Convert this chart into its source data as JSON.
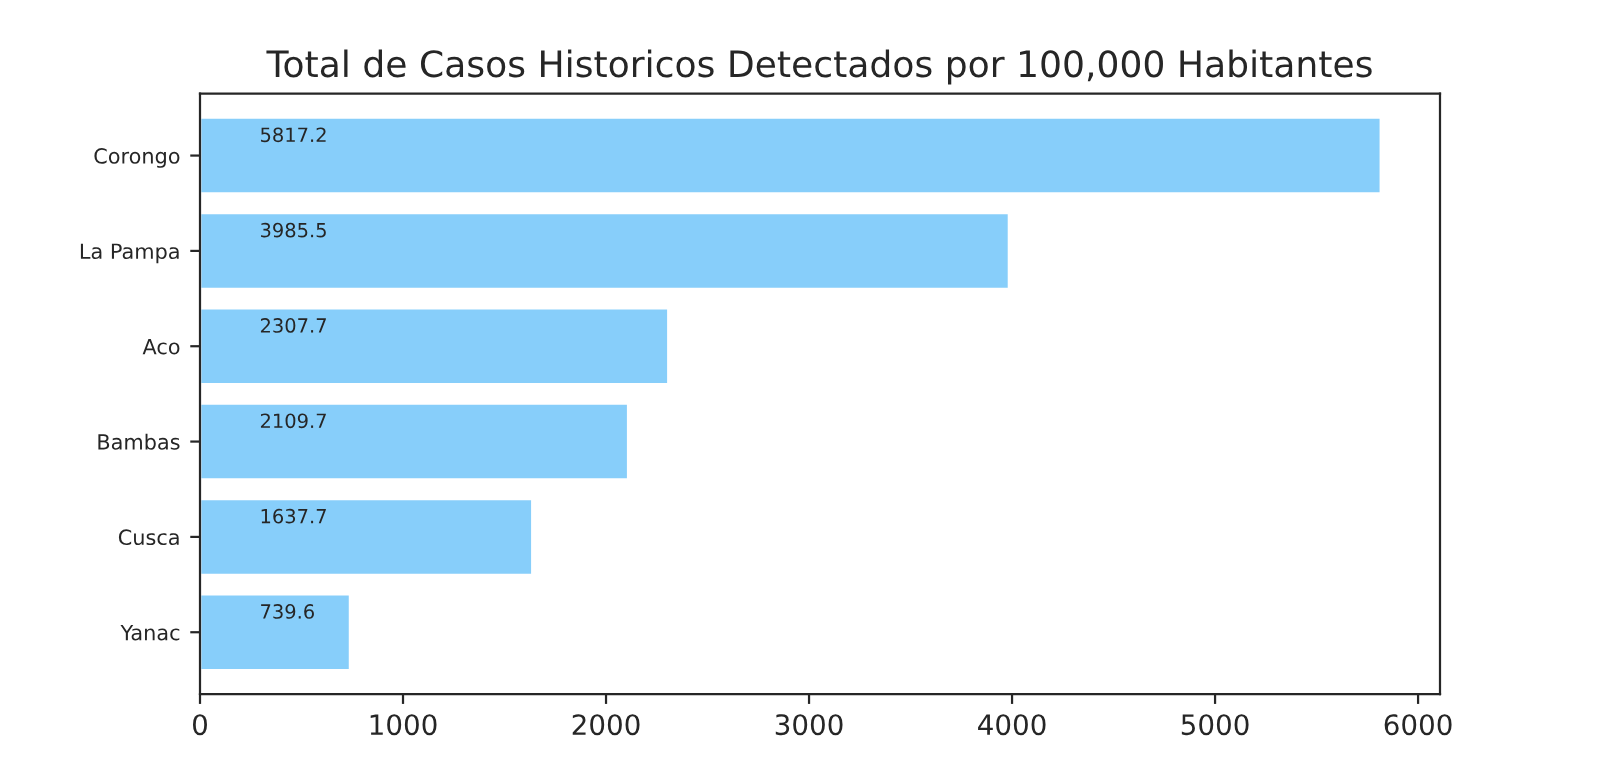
{
  "chart_data": {
    "type": "bar",
    "orientation": "horizontal",
    "title": "Total de Casos Historicos Detectados por 100,000 Habitantes",
    "categories": [
      "Corongo",
      "La Pampa",
      "Aco",
      "Bambas",
      "Cusca",
      "Yanac"
    ],
    "values": [
      5817.2,
      3985.5,
      2307.7,
      2109.7,
      1637.7,
      739.6
    ],
    "color": "#87cefa",
    "data_labels": true,
    "xlim": [
      0,
      6108
    ],
    "xticks": [
      0,
      1000,
      2000,
      3000,
      4000,
      5000,
      6000
    ],
    "grid": false
  }
}
